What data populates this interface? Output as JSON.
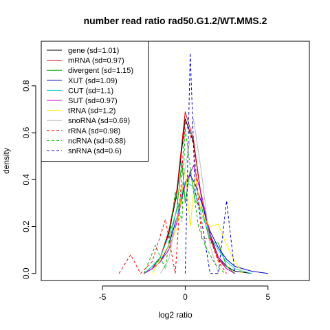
{
  "chart_data": {
    "type": "line",
    "title": "number read ratio rad50.G1.2/WT.MMS.2",
    "xlabel": "log2 ratio",
    "ylabel": "density",
    "xlim": [
      -8.7,
      7.5
    ],
    "ylim": [
      -0.03,
      0.99
    ],
    "x_ticks": [
      -5,
      0,
      5
    ],
    "x_tick_labels": [
      "-5",
      "0",
      "5"
    ],
    "y_ticks": [
      0.0,
      0.2,
      0.4,
      0.6,
      0.8
    ],
    "y_tick_labels": [
      "0.0",
      "0.2",
      "0.4",
      "0.6",
      "0.8"
    ],
    "grid": false,
    "legend_position": "top-left",
    "series": [
      {
        "name": "gene (sd=1.01)",
        "color": "#000000",
        "dash": "solid",
        "x": [
          -2.5,
          -2.0,
          -1.5,
          -1.0,
          -0.5,
          0.0,
          0.5,
          1.0,
          1.5,
          2.0,
          2.5,
          3.0,
          4.0
        ],
        "y": [
          0.0,
          0.02,
          0.07,
          0.17,
          0.34,
          0.66,
          0.56,
          0.31,
          0.16,
          0.07,
          0.03,
          0.01,
          0.0
        ]
      },
      {
        "name": "mRNA (sd=0.97)",
        "color": "#dd0000",
        "dash": "solid",
        "x": [
          -2.5,
          -2.0,
          -1.5,
          -1.0,
          -0.5,
          0.0,
          0.5,
          1.0,
          1.5,
          2.0,
          2.5,
          3.0
        ],
        "y": [
          0.0,
          0.02,
          0.07,
          0.18,
          0.36,
          0.69,
          0.57,
          0.31,
          0.15,
          0.06,
          0.02,
          0.0
        ]
      },
      {
        "name": "divergent (sd=1.15)",
        "color": "#00aa00",
        "dash": "solid",
        "x": [
          -2.5,
          -2.0,
          -1.5,
          -1.0,
          -0.5,
          -0.2,
          0.0,
          0.3,
          0.6,
          1.0,
          1.5,
          2.0,
          2.5,
          3.0
        ],
        "y": [
          0.0,
          0.03,
          0.06,
          0.12,
          0.28,
          0.48,
          0.3,
          0.44,
          0.31,
          0.28,
          0.13,
          0.13,
          0.03,
          0.0
        ]
      },
      {
        "name": "XUT (sd=1.09)",
        "color": "#0000cc",
        "dash": "solid",
        "x": [
          -2.5,
          -2.0,
          -1.5,
          -1.0,
          -0.5,
          0.0,
          0.3,
          0.6,
          1.0,
          1.5,
          2.0,
          2.5,
          3.0,
          4.0,
          5.0
        ],
        "y": [
          0.0,
          0.02,
          0.05,
          0.12,
          0.24,
          0.39,
          0.42,
          0.38,
          0.3,
          0.18,
          0.11,
          0.06,
          0.03,
          0.01,
          0.0
        ]
      },
      {
        "name": "CUT (sd=1.1)",
        "color": "#00cccc",
        "dash": "solid",
        "x": [
          -2.5,
          -2.0,
          -1.5,
          -1.0,
          -0.5,
          0.0,
          0.5,
          1.0,
          1.5,
          2.0,
          2.5,
          3.0,
          4.0
        ],
        "y": [
          0.0,
          0.03,
          0.07,
          0.16,
          0.27,
          0.39,
          0.37,
          0.25,
          0.16,
          0.1,
          0.05,
          0.02,
          0.0
        ]
      },
      {
        "name": "SUT (sd=0.97)",
        "color": "#cc00cc",
        "dash": "solid",
        "x": [
          -2.5,
          -2.0,
          -1.5,
          -1.0,
          -0.5,
          0.0,
          0.5,
          1.0,
          1.5,
          2.0,
          2.5,
          3.0
        ],
        "y": [
          0.0,
          0.02,
          0.05,
          0.1,
          0.22,
          0.38,
          0.46,
          0.33,
          0.17,
          0.07,
          0.02,
          0.0
        ]
      },
      {
        "name": "tRNA (sd=1.2)",
        "color": "#ffee00",
        "dash": "solid",
        "x": [
          -2.0,
          -1.5,
          -1.0,
          -0.5,
          0.0,
          0.3,
          0.6,
          1.0,
          1.5,
          2.0,
          2.5,
          3.0,
          3.5
        ],
        "y": [
          0.0,
          0.06,
          0.12,
          0.19,
          0.45,
          0.2,
          0.42,
          0.25,
          0.2,
          0.21,
          0.12,
          0.05,
          0.0
        ]
      },
      {
        "name": "snoRNA (sd=0.69)",
        "color": "#bbbbbb",
        "dash": "solid",
        "x": [
          -1.5,
          -1.0,
          -0.5,
          0.0,
          0.5,
          1.0,
          1.5,
          2.0
        ],
        "y": [
          0.0,
          0.06,
          0.24,
          0.45,
          0.66,
          0.42,
          0.12,
          0.0
        ]
      },
      {
        "name": "rRNA (sd=0.98)",
        "color": "#ff0000",
        "dash": "dashed",
        "x": [
          -4.0,
          -3.3,
          -2.7,
          -2.0,
          -1.2,
          -0.6,
          0.0,
          0.5,
          1.0,
          1.5,
          2.0,
          2.5
        ],
        "y": [
          0.0,
          0.08,
          0.0,
          0.05,
          0.23,
          0.0,
          0.65,
          0.55,
          0.15,
          0.15,
          0.05,
          0.0
        ]
      },
      {
        "name": "ncRNA (sd=0.88)",
        "color": "#00bb00",
        "dash": "dashed",
        "x": [
          -2.5,
          -1.8,
          -1.2,
          -0.6,
          -0.2,
          0.0,
          0.4,
          0.8,
          1.2,
          1.8,
          2.4
        ],
        "y": [
          0.0,
          0.12,
          0.02,
          0.35,
          0.22,
          0.62,
          0.4,
          0.2,
          0.12,
          0.04,
          0.0
        ]
      },
      {
        "name": "snRNA (sd=0.6)",
        "color": "#0000cc",
        "dash": "dashed",
        "x": [
          0.0,
          0.3,
          0.6,
          1.0,
          1.5,
          2.0,
          2.5,
          3.0
        ],
        "y": [
          0.0,
          0.94,
          0.35,
          0.22,
          0.0,
          0.0,
          0.31,
          0.0
        ]
      }
    ]
  }
}
